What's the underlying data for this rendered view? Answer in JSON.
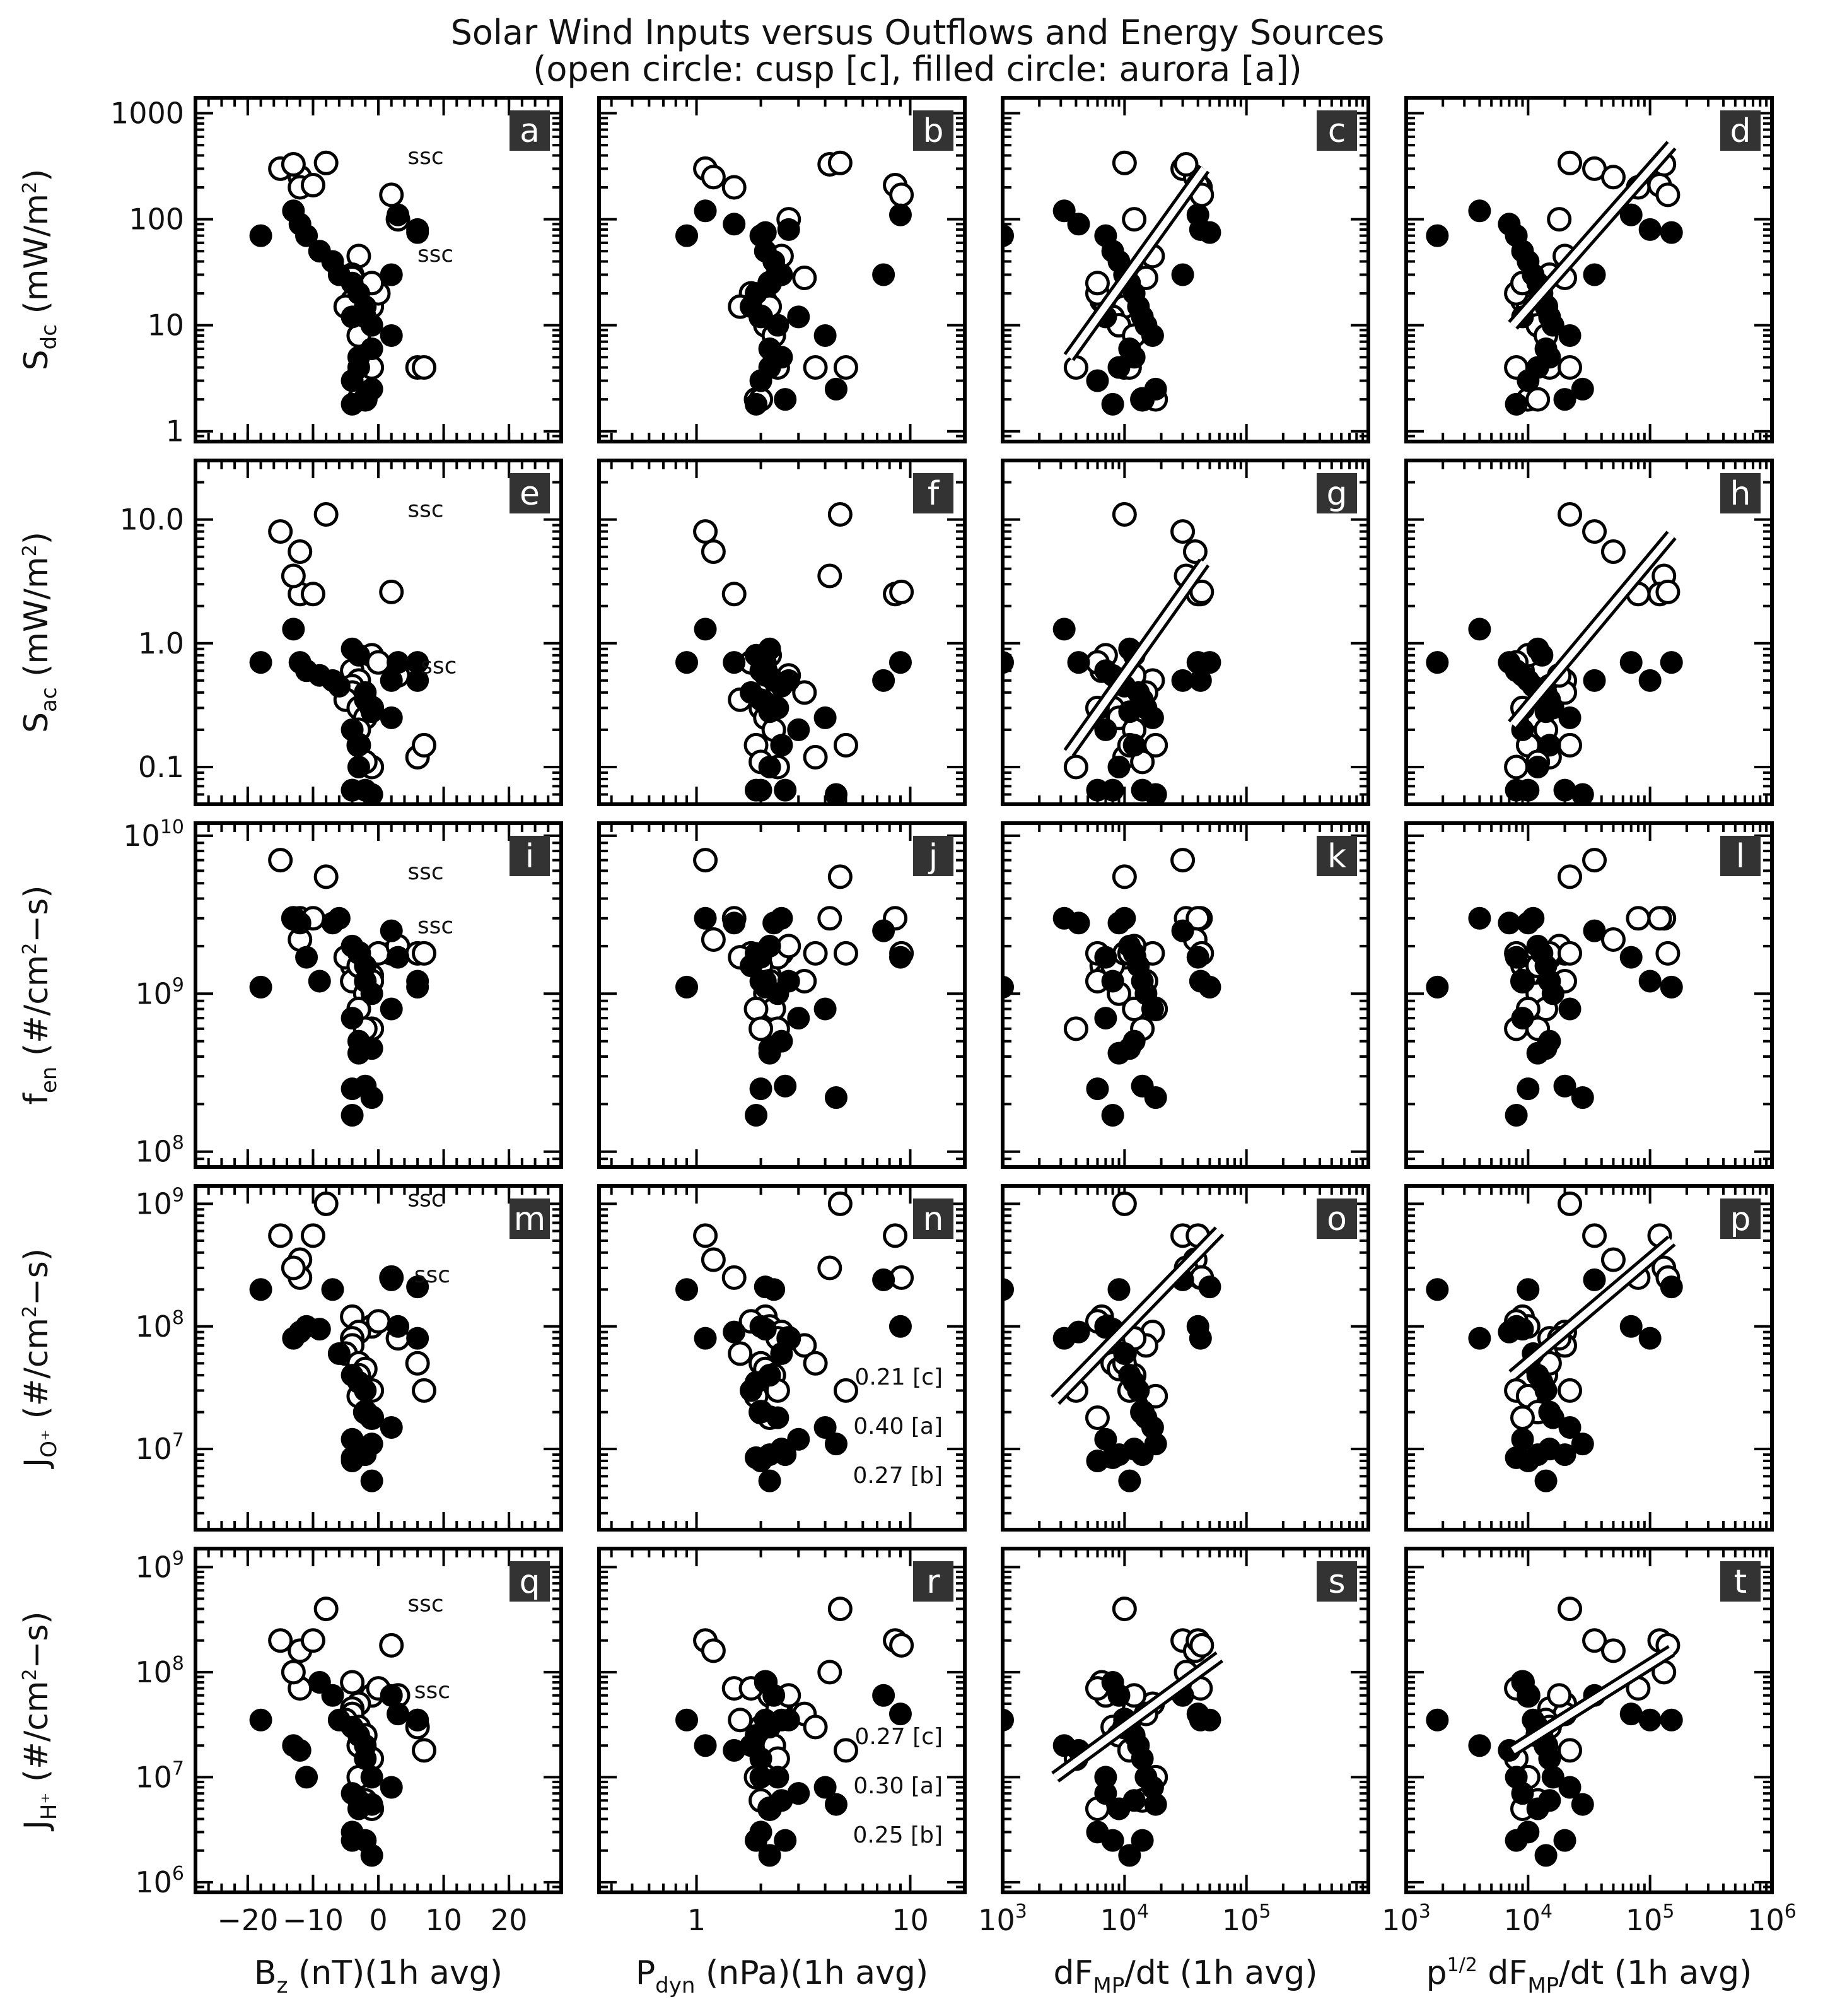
{
  "title_line1": "Solar Wind Inputs versus Outflows and Energy Sources",
  "title_line2": "(open circle: cusp  [c], filled circle: aurora  [a])",
  "chart_data": {
    "type": "scatter",
    "grid": false,
    "columns": [
      {
        "key": "bz",
        "label_main": "B",
        "label_sub": "z",
        "label_rest": " (nT)(1h avg)",
        "scale": "linear",
        "xlim": [
          -28,
          28
        ],
        "ticks": [
          -20,
          -10,
          0,
          10,
          20
        ],
        "tick_labels": [
          "−20",
          "−10",
          "0",
          "10",
          "20"
        ]
      },
      {
        "key": "pdyn",
        "label_main": "P",
        "label_sub": "dyn",
        "label_rest": " (nPa)(1h avg)",
        "scale": "log",
        "xlim": [
          0.35,
          18
        ],
        "ticks": [
          1,
          10
        ],
        "tick_labels": [
          "1",
          "10"
        ]
      },
      {
        "key": "dfmp",
        "label_main": "dF",
        "label_sub": "MP",
        "label_rest": "/dt (1h avg)",
        "scale": "log",
        "xlim": [
          1000,
          1000000
        ],
        "ticks": [
          1000,
          10000,
          100000
        ],
        "tick_labels": [
          [
            "10",
            "3"
          ],
          [
            "10",
            "4"
          ],
          [
            "10",
            "5"
          ]
        ]
      },
      {
        "key": "pdfmp",
        "label_pre": "p",
        "label_pre_sup": "1/2",
        "label_main": " dF",
        "label_sub": "MP",
        "label_rest": "/dt (1h avg)",
        "scale": "log",
        "xlim": [
          1000,
          1000000
        ],
        "ticks": [
          1000,
          10000,
          100000,
          1000000
        ],
        "tick_labels": [
          [
            "10",
            "3"
          ],
          [
            "10",
            "4"
          ],
          [
            "10",
            "5"
          ],
          [
            "10",
            "6"
          ]
        ]
      }
    ],
    "rows": [
      {
        "key": "sdc",
        "label_main": "S",
        "label_sub": "dc",
        "label_rest": " (mW/m",
        "label_sup": "2",
        "label_end": ")",
        "scale": "log",
        "ylim": [
          0.8,
          1400
        ],
        "ticks": [
          1,
          10,
          100,
          1000
        ],
        "tick_labels": [
          "1",
          "10",
          "100",
          "1000"
        ]
      },
      {
        "key": "sac",
        "label_main": "S",
        "label_sub": "ac",
        "label_rest": " (mW/m",
        "label_sup": "2",
        "label_end": ")",
        "scale": "log",
        "ylim": [
          0.05,
          30
        ],
        "ticks": [
          0.1,
          1,
          10
        ],
        "tick_labels": [
          "0.1",
          "1.0",
          "10.0"
        ]
      },
      {
        "key": "fen",
        "label_main": "f",
        "label_sub": "en",
        "label_rest": " (#/cm",
        "label_sup": "2",
        "label_end": "−s)",
        "scale": "log",
        "ylim": [
          80000000,
          12000000000
        ],
        "ticks": [
          100000000,
          1000000000,
          10000000000
        ],
        "tick_labels": [
          [
            "10",
            "8"
          ],
          [
            "10",
            "9"
          ],
          [
            "10",
            "10"
          ]
        ]
      },
      {
        "key": "jo",
        "label_main": "J",
        "label_sub": "O⁺",
        "label_rest": " (#/cm",
        "label_sup": "2",
        "label_end": "−s)",
        "scale": "log",
        "ylim": [
          2200000,
          1400000000
        ],
        "ticks": [
          10000000,
          100000000,
          1000000000
        ],
        "tick_labels": [
          [
            "10",
            "7"
          ],
          [
            "10",
            "8"
          ],
          [
            "10",
            "9"
          ]
        ]
      },
      {
        "key": "jh",
        "label_main": "J",
        "label_sub": "H⁺",
        "label_rest": " (#/cm",
        "label_sup": "2",
        "label_end": "−s)",
        "scale": "log",
        "ylim": [
          800000,
          1500000000
        ],
        "ticks": [
          1000000,
          10000000,
          100000000,
          1000000000
        ],
        "tick_labels": [
          [
            "10",
            "6"
          ],
          [
            "10",
            "7"
          ],
          [
            "10",
            "8"
          ],
          [
            "10",
            "9"
          ]
        ]
      }
    ],
    "panel_letters": [
      [
        "a",
        "b",
        "c",
        "d"
      ],
      [
        "e",
        "f",
        "g",
        "h"
      ],
      [
        "i",
        "j",
        "k",
        "l"
      ],
      [
        "m",
        "n",
        "o",
        "p"
      ],
      [
        "q",
        "r",
        "s",
        "t"
      ]
    ],
    "ssc_label": "ssc",
    "ssc_annotations": [
      {
        "row": 0,
        "col": 0,
        "points": [
          [
            1,
            350
          ],
          [
            2.5,
            42
          ]
        ]
      },
      {
        "row": 1,
        "col": 0,
        "points": [
          [
            1,
            11
          ],
          [
            3,
            0.6
          ]
        ]
      },
      {
        "row": 2,
        "col": 0,
        "points": [
          [
            1,
            5500000000
          ],
          [
            2.5,
            2500000000
          ]
        ]
      },
      {
        "row": 3,
        "col": 0,
        "points": [
          [
            1,
            1000000000
          ],
          [
            2,
            240000000
          ]
        ]
      },
      {
        "row": 4,
        "col": 0,
        "points": [
          [
            1,
            400000000
          ],
          [
            2,
            60000000
          ]
        ]
      }
    ],
    "correlation_notes": [
      {
        "row": 3,
        "col": 1,
        "lines": [
          "0.21 [c]",
          "0.40 [a]",
          "0.27 [b]"
        ]
      },
      {
        "row": 4,
        "col": 1,
        "lines": [
          "0.27 [c]",
          "0.30 [a]",
          "0.25 [b]"
        ]
      }
    ],
    "fit_lines": [
      {
        "row": 0,
        "col": 2,
        "from": [
          3500,
          5
        ],
        "to": [
          45000,
          300
        ]
      },
      {
        "row": 0,
        "col": 3,
        "from": [
          7500,
          10
        ],
        "to": [
          150000,
          500
        ]
      },
      {
        "row": 1,
        "col": 2,
        "from": [
          3500,
          0.13
        ],
        "to": [
          45000,
          4.5
        ]
      },
      {
        "row": 1,
        "col": 3,
        "from": [
          7500,
          0.22
        ],
        "to": [
          150000,
          7.5
        ]
      },
      {
        "row": 3,
        "col": 2,
        "from": [
          2700,
          25000000
        ],
        "to": [
          60000,
          600000000
        ]
      },
      {
        "row": 3,
        "col": 3,
        "from": [
          7500,
          40000000
        ],
        "to": [
          150000,
          500000000
        ]
      },
      {
        "row": 4,
        "col": 2,
        "from": [
          2700,
          10000000
        ],
        "to": [
          60000,
          140000000
        ]
      },
      {
        "row": 4,
        "col": 3,
        "from": [
          7500,
          18000000
        ],
        "to": [
          150000,
          160000000
        ]
      }
    ],
    "series": [
      {
        "name": "cusp [c]",
        "marker": "open-circle",
        "bz": [
          -15,
          -12,
          -12,
          -13,
          -8,
          -10,
          2,
          -4,
          -1,
          0,
          -3,
          -4,
          -4,
          -5,
          -3,
          -2,
          -3,
          -1,
          3,
          6,
          7,
          -3,
          -2,
          -1
        ],
        "pdyn": [
          1.1,
          1.2,
          1.5,
          4.2,
          4.7,
          8.5,
          9.1,
          2.1,
          2.2,
          1.8,
          2.5,
          2.4,
          3.2,
          1.6,
          2.0,
          2.1,
          2.3,
          2.4,
          2.7,
          3.6,
          5.0,
          1.9,
          2.0,
          2.2
        ],
        "dfmp": [
          30000,
          38000,
          42000,
          32000,
          10000,
          40000,
          43000,
          6500,
          7000,
          6000,
          17000,
          12000,
          15000,
          10000,
          8000,
          9000,
          12000,
          4000,
          12000,
          10000,
          11000,
          18000,
          14000,
          6000
        ],
        "pdfmp": [
          35000,
          50000,
          80000,
          130000,
          22000,
          120000,
          140000,
          9000,
          10000,
          8000,
          20000,
          15000,
          20000,
          14000,
          12000,
          12000,
          14000,
          8000,
          18000,
          15000,
          22000,
          10000,
          12000,
          9000
        ],
        "sdc": [
          300,
          250,
          200,
          330,
          340,
          210,
          170,
          17,
          15,
          20,
          45,
          30,
          28,
          15,
          12,
          10,
          8,
          4,
          100,
          4,
          4,
          2,
          2,
          25
        ],
        "sac": [
          8,
          5.5,
          2.5,
          3.5,
          11,
          2.5,
          2.6,
          0.6,
          0.8,
          0.7,
          0.5,
          0.45,
          0.4,
          0.35,
          0.3,
          0.25,
          0.2,
          0.1,
          0.55,
          0.12,
          0.15,
          0.15,
          0.11,
          0.3
        ],
        "fen": [
          7000000000,
          2200000000,
          3000000000,
          3000000000,
          5500000000,
          3000000000,
          1800000000,
          1500000000,
          1300000000,
          1800000000,
          1800000000,
          1700000000,
          1200000000,
          1700000000,
          1500000000,
          1000000000,
          800000000,
          600000000,
          2000000000,
          1800000000,
          1800000000,
          800000000,
          600000000,
          1200000000
        ],
        "jo": [
          550000000,
          350000000,
          250000000,
          300000000,
          1000000000,
          550000000,
          250000000,
          120000000,
          100000000,
          110000000,
          90000000,
          80000000,
          70000000,
          60000000,
          50000000,
          45000000,
          40000000,
          30000000,
          80000000,
          50000000,
          30000000,
          27000000,
          20000000,
          18000000
        ],
        "jh": [
          200000000,
          160000000,
          70000000,
          100000000,
          400000000,
          200000000,
          180000000,
          80000000,
          60000000,
          70000000,
          50000000,
          45000000,
          40000000,
          35000000,
          30000000,
          25000000,
          20000000,
          15000000,
          60000000,
          30000000,
          18000000,
          10000000,
          6000000,
          5000000
        ]
      },
      {
        "name": "aurora [a]",
        "marker": "filled-circle",
        "bz": [
          -18,
          -13,
          -12,
          -11,
          -9,
          -7,
          -6,
          -4,
          -3,
          -2,
          -2,
          -1,
          2,
          2,
          3,
          6,
          6,
          -4,
          -3,
          -3,
          -4,
          -1,
          -2,
          -4,
          -1
        ],
        "pdyn": [
          0.9,
          1.1,
          1.5,
          2.0,
          2.1,
          2.3,
          2.5,
          2.2,
          1.9,
          1.8,
          2.0,
          2.4,
          4.0,
          7.5,
          9.0,
          2.7,
          2.1,
          3.0,
          2.5,
          2.2,
          2.0,
          4.5,
          2.6,
          1.9,
          2.2
        ],
        "dfmp": [
          1000,
          3200,
          4200,
          7000,
          8000,
          9000,
          10000,
          11000,
          12000,
          13000,
          14000,
          15000,
          17000,
          30000,
          40000,
          42000,
          50000,
          7000,
          12000,
          9000,
          6000,
          18000,
          14000,
          8000,
          11000
        ],
        "pdfmp": [
          1800,
          4000,
          7000,
          8000,
          9000,
          10000,
          11000,
          12000,
          13000,
          14000,
          15000,
          16000,
          22000,
          35000,
          70000,
          100000,
          150000,
          9000,
          15000,
          12000,
          10000,
          28000,
          20000,
          8000,
          14000
        ],
        "sdc": [
          70,
          120,
          90,
          70,
          50,
          40,
          30,
          25,
          20,
          15,
          12,
          10,
          8,
          30,
          110,
          80,
          75,
          12,
          5,
          4,
          3,
          2.5,
          2,
          1.8,
          6
        ],
        "sac": [
          0.7,
          1.3,
          0.7,
          0.6,
          0.55,
          0.5,
          0.45,
          0.9,
          0.8,
          0.4,
          0.35,
          0.3,
          0.25,
          0.5,
          0.7,
          0.5,
          0.7,
          0.2,
          0.15,
          0.1,
          0.065,
          0.06,
          0.065,
          0.065,
          0.28
        ],
        "fen": [
          1100000000,
          3000000000,
          2800000000,
          1700000000,
          1200000000,
          2800000000,
          3000000000,
          2000000000,
          1800000000,
          1500000000,
          1200000000,
          1000000000,
          800000000,
          2500000000,
          1700000000,
          1200000000,
          1100000000,
          700000000,
          500000000,
          420000000,
          250000000,
          220000000,
          260000000,
          170000000,
          450000000
        ],
        "jo": [
          200000000,
          80000000,
          90000000,
          100000000,
          95000000,
          200000000,
          60000000,
          40000000,
          35000000,
          30000000,
          20000000,
          18000000,
          15000000,
          240000000,
          100000000,
          80000000,
          210000000,
          12000000,
          10000000,
          9000000,
          8000000,
          11000000,
          9000000,
          8500000,
          5500000
        ],
        "jh": [
          35000000,
          20000000,
          18000000,
          10000000,
          80000000,
          60000000,
          35000000,
          30000000,
          25000000,
          20000000,
          15000000,
          10000000,
          8000000,
          60000000,
          40000000,
          35000000,
          35000000,
          7000000,
          6000000,
          5000000,
          3000000,
          5500000,
          2500000,
          2500000,
          1800000
        ]
      }
    ]
  }
}
